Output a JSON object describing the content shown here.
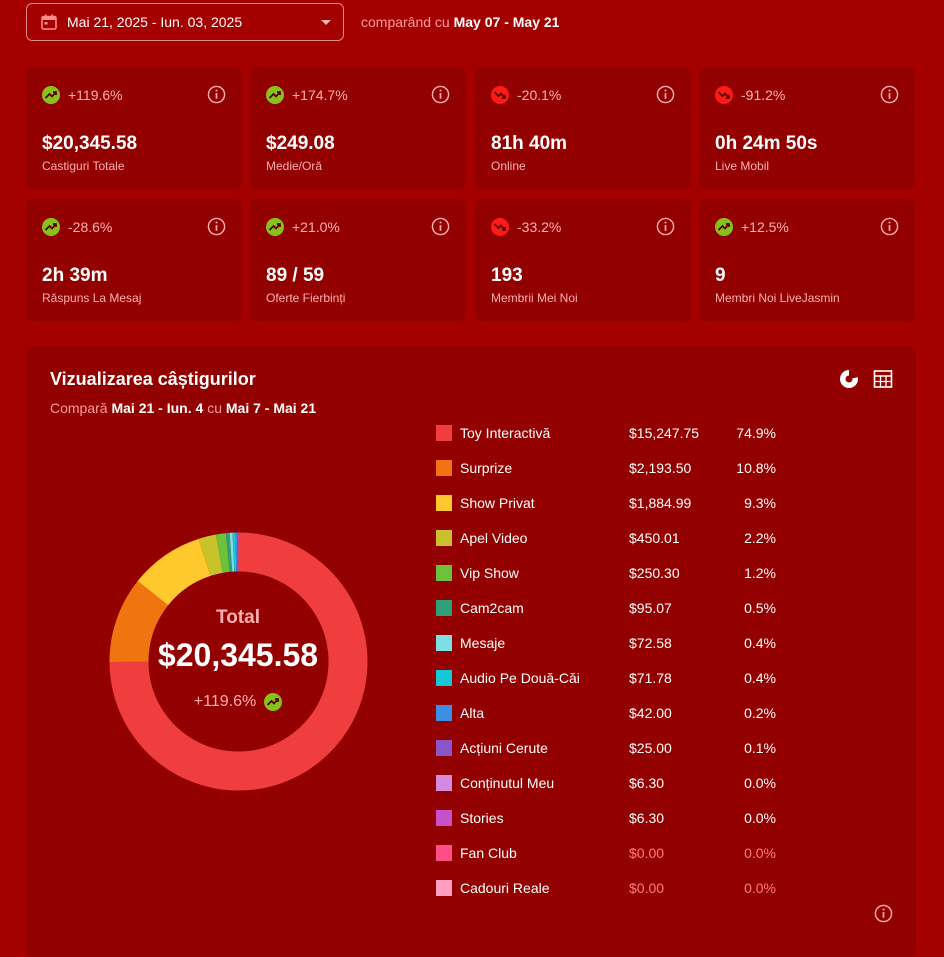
{
  "date_range": {
    "value": "Mai 21, 2025 - Iun. 03, 2025",
    "compare_prefix": "comparând cu",
    "compare_range": "May 07 - May 21"
  },
  "cards": [
    {
      "change": "+119.6%",
      "direction": "up",
      "value": "$20,345.58",
      "label": "Castiguri Totale"
    },
    {
      "change": "+174.7%",
      "direction": "up",
      "value": "$249.08",
      "label": "Medie/Oră"
    },
    {
      "change": "-20.1%",
      "direction": "down",
      "value": "81h 40m",
      "label": "Online"
    },
    {
      "change": "-91.2%",
      "direction": "down",
      "value": "0h 24m 50s",
      "label": "Live Mobil"
    },
    {
      "change": "-28.6%",
      "direction": "up",
      "value": "2h 39m",
      "label": "Răspuns La Mesaj"
    },
    {
      "change": "+21.0%",
      "direction": "up",
      "value": "89 / 59",
      "label": "Oferte Fierbinți"
    },
    {
      "change": "-33.2%",
      "direction": "down",
      "value": "193",
      "label": "Membrii Mei Noi"
    },
    {
      "change": "+12.5%",
      "direction": "up",
      "value": "9",
      "label": "Membri Noi LiveJasmin"
    }
  ],
  "earnings": {
    "title": "Vizualizarea câștigurilor",
    "compare_word": "Compară",
    "range_a": "Mai 21 - Iun. 4",
    "cu": "cu",
    "range_b": "Mai 7 - Mai 21",
    "center_label": "Total",
    "center_value": "$20,345.58",
    "center_change": "+119.6%"
  },
  "chart_data": {
    "type": "pie",
    "categories": [
      "Toy Interactivă",
      "Surprize",
      "Show Privat",
      "Apel Video",
      "Vip Show",
      "Cam2cam",
      "Mesaje",
      "Audio Pe Două-Căi",
      "Alta",
      "Acțiuni Cerute",
      "Conținutul Meu",
      "Stories",
      "Fan Club",
      "Cadouri Reale"
    ],
    "values": [
      15247.75,
      2193.5,
      1884.99,
      450.01,
      250.3,
      95.07,
      72.58,
      71.78,
      42.0,
      25.0,
      6.3,
      6.3,
      0.0,
      0.0
    ],
    "amounts": [
      "$15,247.75",
      "$2,193.50",
      "$1,884.99",
      "$450.01",
      "$250.30",
      "$95.07",
      "$72.58",
      "$71.78",
      "$42.00",
      "$25.00",
      "$6.30",
      "$6.30",
      "$0.00",
      "$0.00"
    ],
    "percents": [
      "74.9%",
      "10.8%",
      "9.3%",
      "2.2%",
      "1.2%",
      "0.5%",
      "0.4%",
      "0.4%",
      "0.2%",
      "0.1%",
      "0.0%",
      "0.0%",
      "0.0%",
      "0.0%"
    ],
    "colors": [
      "#f03e3e",
      "#f07410",
      "#ffc82c",
      "#c9c22a",
      "#6cc33b",
      "#2fa07a",
      "#7fdde6",
      "#17c7d6",
      "#3d8fe6",
      "#8a55c8",
      "#d68adf",
      "#c850c8",
      "#ff4d88",
      "#ff9ec2"
    ],
    "legend": "right",
    "donut": true
  }
}
